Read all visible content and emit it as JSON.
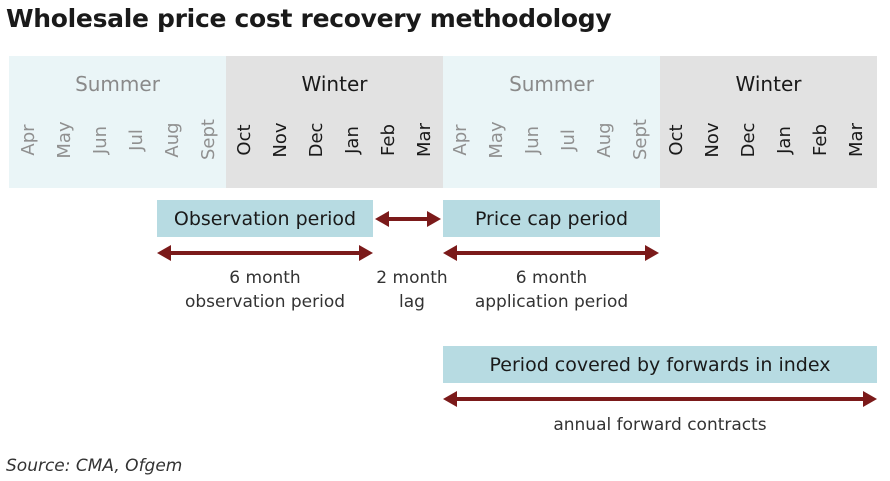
{
  "title": "Wholesale price cost recovery methodology",
  "seasons": [
    {
      "label": "Summer",
      "months": [
        "Apr",
        "May",
        "Jun",
        "Jul",
        "Aug",
        "Sept"
      ]
    },
    {
      "label": "Winter",
      "months": [
        "Oct",
        "Nov",
        "Dec",
        "Jan",
        "Feb",
        "Mar"
      ]
    },
    {
      "label": "Summer",
      "months": [
        "Apr",
        "May",
        "Jun",
        "Jul",
        "Aug",
        "Sept"
      ]
    },
    {
      "label": "Winter",
      "months": [
        "Oct",
        "Nov",
        "Dec",
        "Jan",
        "Feb",
        "Mar"
      ]
    }
  ],
  "boxes": {
    "observation": "Observation period",
    "price_cap": "Price cap period",
    "forwards": "Period covered by forwards in index"
  },
  "notes": {
    "observation_line1": "6 month",
    "observation_line2": "observation period",
    "lag_line1": "2 month",
    "lag_line2": "lag",
    "application_line1": "6 month",
    "application_line2": "application period",
    "annual": "annual forward contracts"
  },
  "source": "Source: CMA, Ofgem",
  "colors": {
    "summer_bg": "#eaf5f7",
    "winter_bg": "#e2e2e2",
    "box_bg": "#b7dbe2",
    "arrow": "#7b1a1a"
  }
}
